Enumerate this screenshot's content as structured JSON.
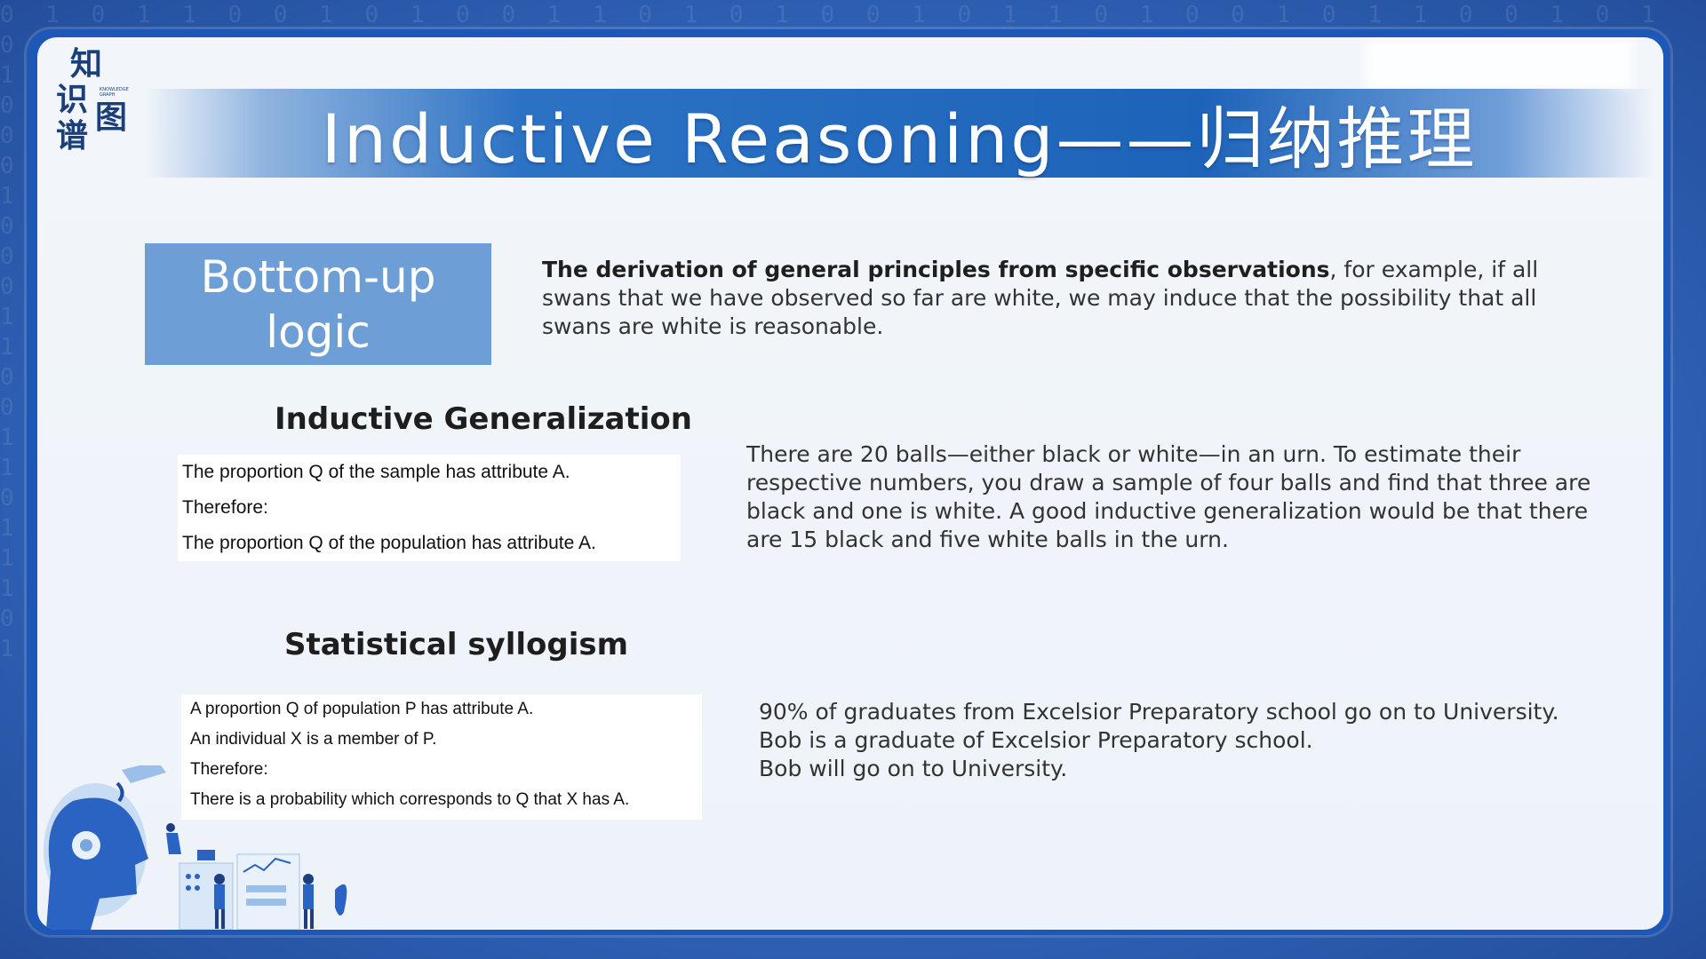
{
  "logo": {
    "chars": [
      "知",
      "识",
      "图",
      "谱"
    ],
    "subtext": "KNOWLEDGE GRAPH"
  },
  "slide": {
    "title": "Inductive Reasoning——归纳推理",
    "badge": {
      "line1": "Bottom-up",
      "line2": "logic"
    },
    "intro": {
      "bold": "The derivation of general principles from specific observations",
      "rest": ", for example, if all swans that we have observed so far are white, we may induce that the possibility that all swans are white is reasonable."
    },
    "generalization": {
      "heading": "Inductive Generalization",
      "lines": [
        "The proportion Q of the sample has attribute A.",
        "Therefore:",
        "The proportion Q of the population has attribute A."
      ],
      "example": "There are 20 balls—either black or white—in an urn. To estimate their respective numbers, you draw a sample of four balls and find that three are black and one is white. A good inductive generalization would be that there are 15 black and five white balls in the urn."
    },
    "syllogism": {
      "heading": "Statistical syllogism",
      "lines": [
        "A proportion Q of population P has attribute A.",
        "An individual X is a member of P.",
        "Therefore:",
        "There is a probability which corresponds to Q that X has A."
      ],
      "example_lines": [
        "90% of graduates from Excelsior Preparatory school go on to University.",
        "Bob is a graduate of Excelsior Preparatory school.",
        "Bob will go on to University."
      ]
    }
  },
  "colors": {
    "frame": "#1d57b8",
    "title_bar": "#1d63b9",
    "badge": "#6d9fd6",
    "background": "#2f63b8"
  },
  "icons": [
    "ai-head-illustration",
    "data-analysis-people-illustration"
  ]
}
